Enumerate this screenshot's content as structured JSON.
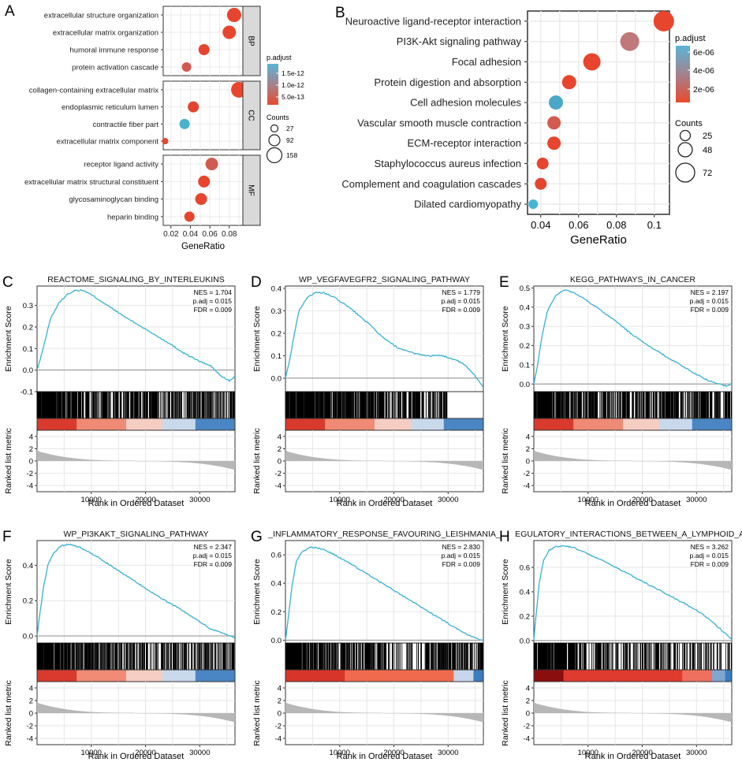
{
  "panel_a": {
    "letter": "A",
    "xlabel": "GeneRatio",
    "xticks": [
      0.02,
      0.04,
      0.06,
      0.08
    ],
    "xlim": [
      0.012,
      0.094
    ],
    "legend": {
      "color_title": "p.adjust",
      "color_ticks": [
        "1.5e-12",
        "1.0e-12",
        "5.0e-13"
      ],
      "size_title": "Counts",
      "size_values": [
        "27",
        "92",
        "158"
      ]
    },
    "facets": [
      {
        "name": "BP",
        "terms": [
          {
            "label": "extracellular structure organization",
            "ratio": 0.085,
            "color": "#e8452e",
            "r": 9
          },
          {
            "label": "extracellular matrix organization",
            "ratio": 0.08,
            "color": "#e8452e",
            "r": 8.5
          },
          {
            "label": "humoral immune response",
            "ratio": 0.054,
            "color": "#e7442f",
            "r": 7
          },
          {
            "label": "protein activation cascade",
            "ratio": 0.036,
            "color": "#d2594f",
            "r": 6
          }
        ]
      },
      {
        "name": "CC",
        "terms": [
          {
            "label": "collagen-containing extracellular matrix",
            "ratio": 0.09,
            "color": "#e8452e",
            "r": 10
          },
          {
            "label": "endoplasmic reticulum lumen",
            "ratio": 0.043,
            "color": "#e3442f",
            "r": 7
          },
          {
            "label": "contractile fiber part",
            "ratio": 0.034,
            "color": "#4bb1cc",
            "r": 6.5
          },
          {
            "label": "extracellular matrix component",
            "ratio": 0.014,
            "color": "#e8452e",
            "r": 4
          }
        ]
      },
      {
        "name": "MF",
        "terms": [
          {
            "label": "receptor ligand activity",
            "ratio": 0.062,
            "color": "#cf5c50",
            "r": 8
          },
          {
            "label": "extracellular matrix structural constituent",
            "ratio": 0.054,
            "color": "#e8452e",
            "r": 7.5
          },
          {
            "label": "glycosaminoglycan binding",
            "ratio": 0.051,
            "color": "#e7452e",
            "r": 7.5
          },
          {
            "label": "heparin binding",
            "ratio": 0.039,
            "color": "#e5452f",
            "r": 6.5
          }
        ]
      }
    ]
  },
  "panel_b": {
    "letter": "B",
    "xlabel": "GeneRatio",
    "xticks": [
      0.04,
      0.06,
      0.08,
      0.1
    ],
    "xlim": [
      0.033,
      0.108
    ],
    "legend": {
      "color_title": "p.adjust",
      "color_ticks": [
        "6e-06",
        "4e-06",
        "2e-06"
      ],
      "size_title": "Counts",
      "size_values": [
        "25",
        "48",
        "72"
      ]
    },
    "terms": [
      {
        "label": "Neuroactive ligand-receptor interaction",
        "ratio": 0.105,
        "color": "#e8452e",
        "r": 13
      },
      {
        "label": "PI3K-Akt signaling pathway",
        "ratio": 0.087,
        "color": "#c0787a",
        "r": 12
      },
      {
        "label": "Focal adhesion",
        "ratio": 0.067,
        "color": "#e8452e",
        "r": 11
      },
      {
        "label": "Protein digestion and absorption",
        "ratio": 0.055,
        "color": "#e7452e",
        "r": 9
      },
      {
        "label": "Cell adhesion molecules",
        "ratio": 0.048,
        "color": "#4aa7c7",
        "r": 9
      },
      {
        "label": "Vascular smooth muscle contraction",
        "ratio": 0.047,
        "color": "#d15b4f",
        "r": 8.5
      },
      {
        "label": "ECM-receptor interaction",
        "ratio": 0.047,
        "color": "#e7452e",
        "r": 8.5
      },
      {
        "label": "Staphylococcus aureus infection",
        "ratio": 0.041,
        "color": "#e7452e",
        "r": 7.5
      },
      {
        "label": "Complement and coagulation cascades",
        "ratio": 0.04,
        "color": "#e5452f",
        "r": 7.5
      },
      {
        "label": "Dilated cardiomyopathy",
        "ratio": 0.036,
        "color": "#46b5d4",
        "r": 6
      }
    ]
  },
  "gsea_common": {
    "ylabel_es": "Enrichment Score",
    "ylabel_metric": "Ranked list metric",
    "xlabel": "Rank in Ordered Dataset",
    "xticks": [
      10000,
      20000,
      30000
    ],
    "metric_ticks": [
      4,
      2,
      0,
      -2,
      -4
    ],
    "n_genes": 36500
  },
  "chart_data": [
    {
      "letter": "C",
      "type": "line",
      "title": "REACTOME_SIGNALING_BY_INTERLEUKINS",
      "nes": "NES = 1.704",
      "padj": "p.adj = 0.015",
      "fdr": "FDR = 0.009",
      "ylim": [
        -0.1,
        0.39
      ],
      "yticks": [
        0.3,
        0.2,
        0.1,
        0.0,
        -0.1
      ],
      "tick_labels": [
        "0.3",
        "0.2",
        "0.1",
        "0.0",
        "-0.1"
      ],
      "gap": "none",
      "bar_style": "mixed",
      "x": [
        0,
        700,
        1500,
        2500,
        4000,
        5500,
        7000,
        8500,
        10000,
        13000,
        16000,
        20000,
        24000,
        27000,
        30000,
        32000,
        34000,
        35500,
        36500
      ],
      "y": [
        0,
        0.06,
        0.14,
        0.24,
        0.31,
        0.35,
        0.37,
        0.37,
        0.35,
        0.3,
        0.25,
        0.19,
        0.13,
        0.08,
        0.04,
        0.02,
        -0.03,
        -0.05,
        -0.03
      ]
    },
    {
      "letter": "D",
      "type": "line",
      "title": "WP_VEGFAVEGFR2_SIGNALING_PATHWAY",
      "nes": "NES = 1.779",
      "padj": "p.adj = 0.015",
      "fdr": "FDR = 0.009",
      "ylim": [
        -0.06,
        0.41
      ],
      "yticks": [
        0.4,
        0.3,
        0.2,
        0.1,
        0.0
      ],
      "tick_labels": [
        "0.4",
        "0.3",
        "0.2",
        "0.1",
        "0.0"
      ],
      "gap": "end",
      "bar_style": "mixed",
      "x": [
        0,
        700,
        1500,
        2500,
        4000,
        5500,
        7000,
        9000,
        12000,
        15000,
        18000,
        21000,
        24000,
        26000,
        29000,
        31500,
        33000,
        35000,
        36500
      ],
      "y": [
        0,
        0.07,
        0.18,
        0.3,
        0.36,
        0.38,
        0.38,
        0.36,
        0.31,
        0.25,
        0.18,
        0.13,
        0.11,
        0.1,
        0.1,
        0.08,
        0.06,
        0.01,
        -0.04
      ]
    },
    {
      "letter": "E",
      "type": "line",
      "title": "KEGG_PATHWAYS_IN_CANCER",
      "nes": "NES = 2.197",
      "padj": "p.adj = 0.015",
      "fdr": "FDR = 0.009",
      "ylim": [
        -0.04,
        0.51
      ],
      "yticks": [
        0.5,
        0.4,
        0.3,
        0.2,
        0.1,
        0.0
      ],
      "tick_labels": [
        "0.5",
        "0.4",
        "0.3",
        "0.2",
        "0.1",
        "0.0"
      ],
      "gap": "none",
      "bar_style": "mixed",
      "x": [
        0,
        700,
        1500,
        2500,
        4000,
        5500,
        7000,
        9000,
        12000,
        15000,
        18000,
        21000,
        24000,
        27000,
        30000,
        32000,
        34000,
        35500,
        36500
      ],
      "y": [
        0,
        0.1,
        0.25,
        0.38,
        0.46,
        0.49,
        0.48,
        0.45,
        0.39,
        0.33,
        0.26,
        0.2,
        0.15,
        0.1,
        0.05,
        0.02,
        0.0,
        -0.01,
        0.0
      ]
    },
    {
      "letter": "F",
      "type": "line",
      "title": "WP_PI3KAKT_SIGNALING_PATHWAY",
      "nes": "NES = 2.347",
      "padj": "p.adj = 0.015",
      "fdr": "FDR = 0.009",
      "ylim": [
        -0.04,
        0.54
      ],
      "yticks": [
        0.4,
        0.2,
        0.0
      ],
      "tick_labels": [
        "0.4",
        "0.2",
        "0.0"
      ],
      "gap": "none",
      "bar_style": "mixed",
      "x": [
        0,
        500,
        1200,
        2000,
        3000,
        4500,
        6000,
        8000,
        11000,
        14000,
        17000,
        20000,
        23000,
        26000,
        29000,
        32000,
        34000,
        35500,
        36500
      ],
      "y": [
        0,
        0.12,
        0.28,
        0.4,
        0.47,
        0.51,
        0.52,
        0.5,
        0.45,
        0.39,
        0.33,
        0.27,
        0.21,
        0.16,
        0.1,
        0.04,
        0.02,
        0.0,
        -0.01
      ]
    },
    {
      "letter": "G",
      "type": "line",
      "title": "_INFLAMMATORY_RESPONSE_FAVOURING_LEISHMANIA_",
      "nes": "NES = 2.830",
      "padj": "p.adj = 0.015",
      "fdr": "FDR = 0.009",
      "ylim": [
        -0.02,
        0.7
      ],
      "yticks": [
        0.6,
        0.4,
        0.2,
        0.0
      ],
      "tick_labels": [
        "0.6",
        "0.4",
        "0.2",
        "0.0"
      ],
      "gap": "mid",
      "bar_style": "red",
      "x": [
        0,
        500,
        1200,
        2000,
        3000,
        4500,
        6000,
        8000,
        11000,
        14000,
        17000,
        20000,
        23000,
        26000,
        29000,
        32000,
        34000,
        35500,
        36500
      ],
      "y": [
        0,
        0.15,
        0.38,
        0.55,
        0.62,
        0.65,
        0.65,
        0.62,
        0.56,
        0.49,
        0.42,
        0.35,
        0.28,
        0.21,
        0.14,
        0.07,
        0.03,
        0.01,
        0.0
      ]
    },
    {
      "letter": "H",
      "type": "line",
      "title": "EGULATORY_INTERACTIONS_BETWEEN_A_LYMPHOID_AN",
      "nes": "NES = 3.262",
      "padj": "p.adj = 0.015",
      "fdr": "FDR = 0.009",
      "ylim": [
        -0.02,
        0.82
      ],
      "yticks": [
        0.6,
        0.4,
        0.2,
        0.0
      ],
      "tick_labels": [
        "0.6",
        "0.4",
        "0.2",
        "0.0"
      ],
      "gap": "left",
      "bar_style": "deep",
      "x": [
        0,
        400,
        1000,
        1800,
        2800,
        4000,
        5500,
        7500,
        10000,
        13000,
        16000,
        19000,
        22000,
        25000,
        28000,
        31000,
        33500,
        35500,
        36500
      ],
      "y": [
        0,
        0.2,
        0.48,
        0.66,
        0.74,
        0.77,
        0.78,
        0.76,
        0.71,
        0.65,
        0.58,
        0.51,
        0.44,
        0.37,
        0.3,
        0.22,
        0.13,
        0.05,
        0.01
      ]
    }
  ]
}
